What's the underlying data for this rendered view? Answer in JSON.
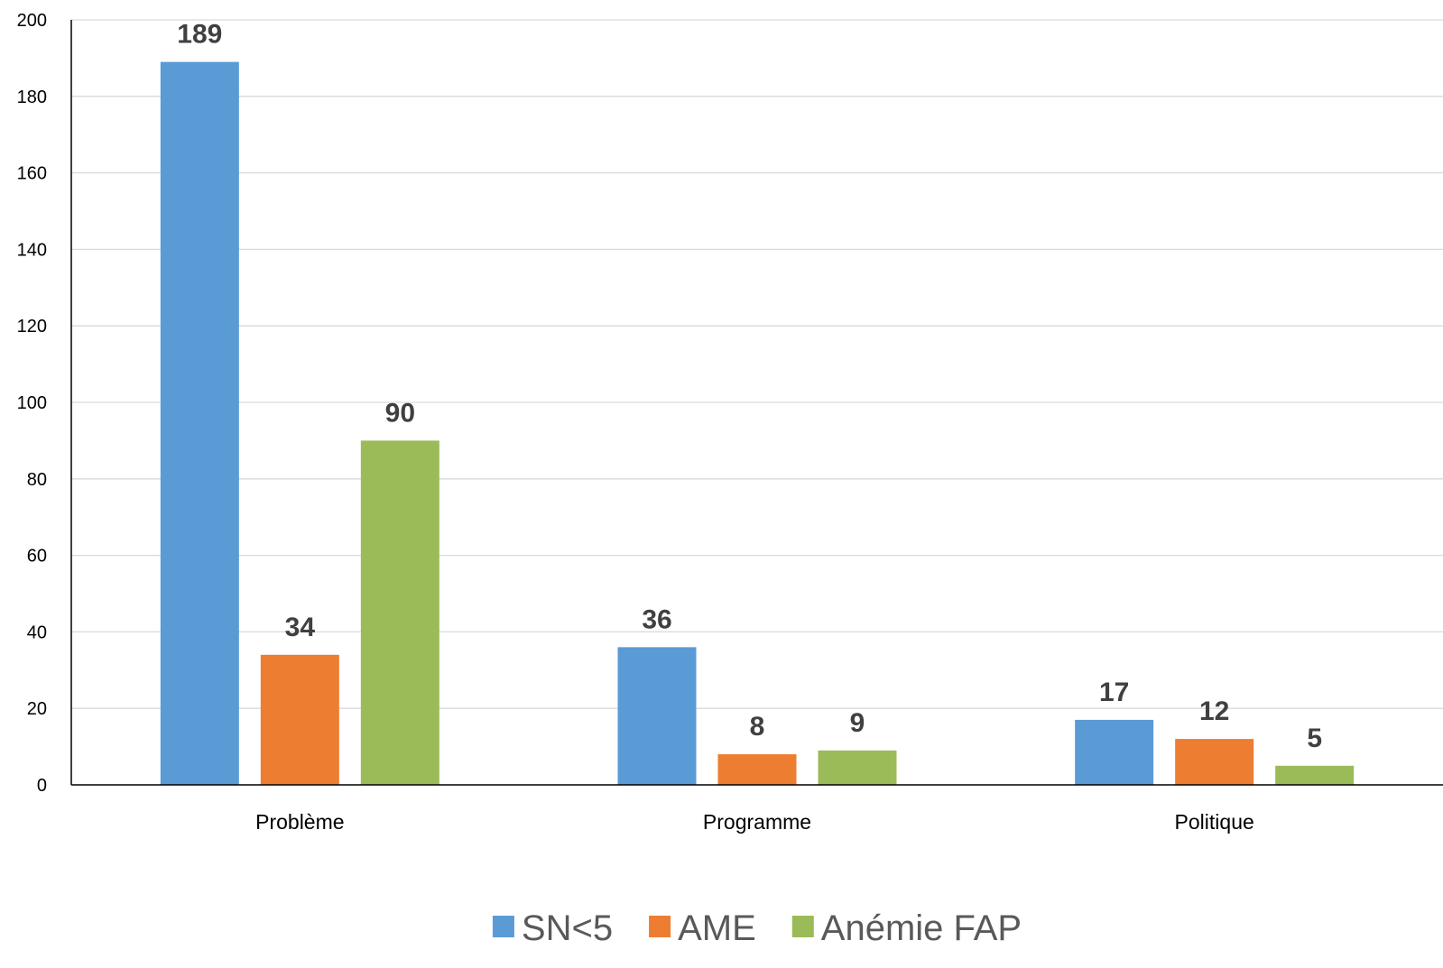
{
  "chart_data": {
    "type": "bar",
    "categories": [
      "Problème",
      "Programme",
      "Politique"
    ],
    "series": [
      {
        "name": "SN<5",
        "values": [
          189,
          36,
          17
        ],
        "color": "#5B9BD5"
      },
      {
        "name": "AME",
        "values": [
          34,
          8,
          12
        ],
        "color": "#ED7D31"
      },
      {
        "name": "Anémie FAP",
        "values": [
          90,
          9,
          5
        ],
        "color": "#9BBB59"
      }
    ],
    "ylim": [
      0,
      200
    ],
    "yticks": [
      0,
      20,
      40,
      60,
      80,
      100,
      120,
      140,
      160,
      180,
      200
    ],
    "grid": true,
    "legend_position": "bottom",
    "data_labels": true,
    "title": "",
    "xlabel": "",
    "ylabel": ""
  }
}
